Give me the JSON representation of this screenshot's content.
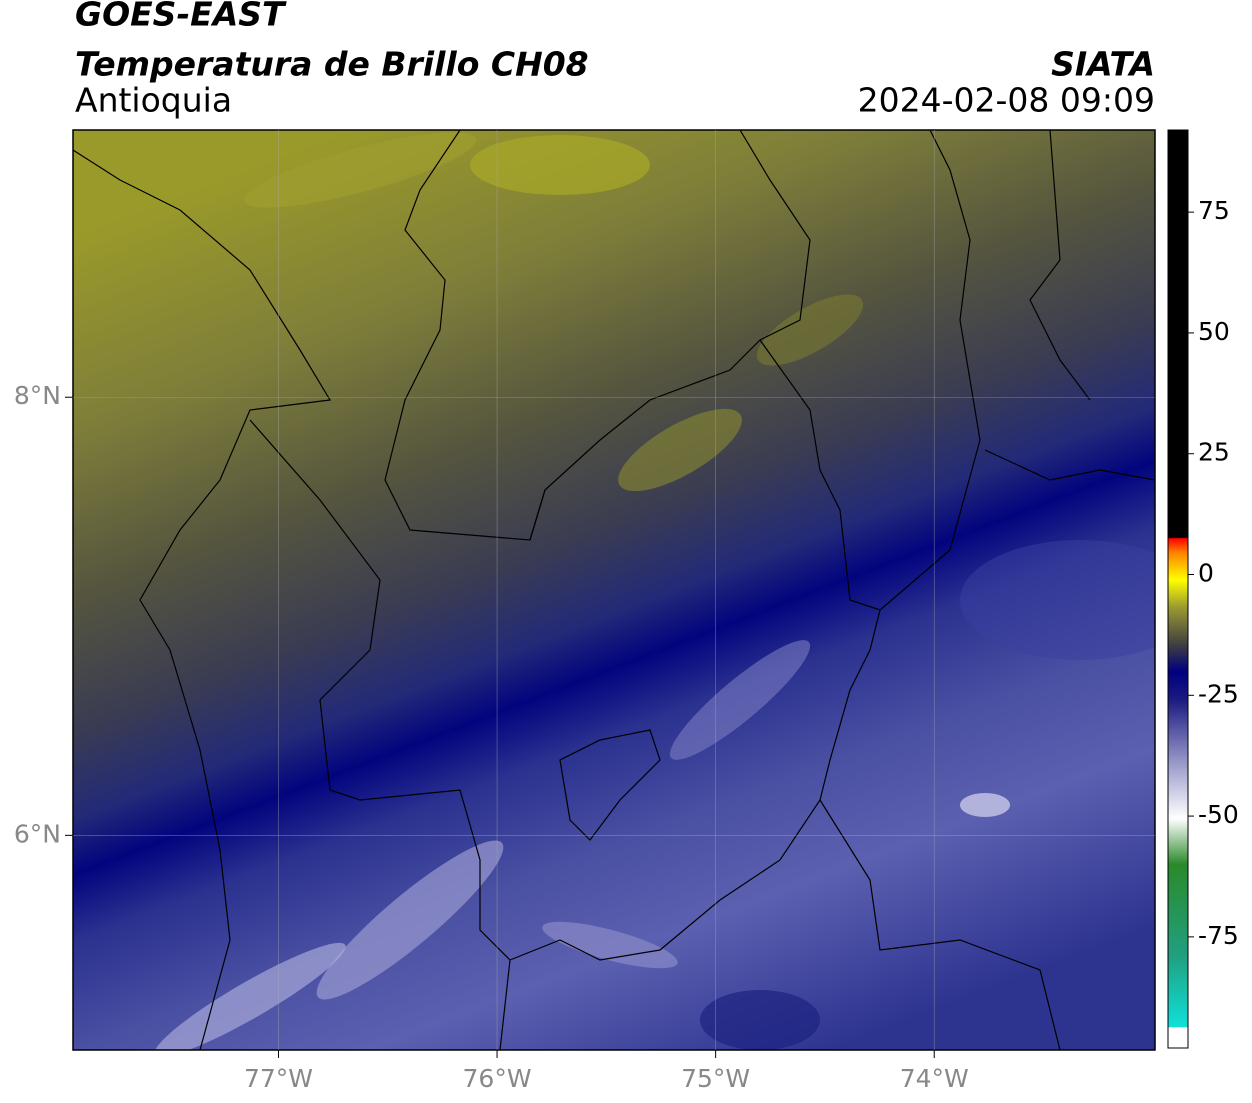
{
  "header": {
    "title": "GOES-EAST",
    "subtitle": "Temperatura de Brillo CH08",
    "organization": "SIATA",
    "region": "Antioquia",
    "timestamp": "2024-02-08 09:09"
  },
  "map": {
    "xlim": [
      -77.94,
      -72.99
    ],
    "ylim": [
      5.02,
      9.22
    ],
    "xticks": [
      {
        "value": -77,
        "label": "77°W"
      },
      {
        "value": -76,
        "label": "76°W"
      },
      {
        "value": -75,
        "label": "75°W"
      },
      {
        "value": -74,
        "label": "74°W"
      }
    ],
    "yticks": [
      {
        "value": 6,
        "label": "6°N"
      },
      {
        "value": 8,
        "label": "8°N"
      }
    ],
    "grid": true
  },
  "colorbar": {
    "lim": [
      -98,
      92
    ],
    "ticks": [
      75,
      50,
      25,
      0,
      -25,
      -50,
      -75
    ]
  }
}
